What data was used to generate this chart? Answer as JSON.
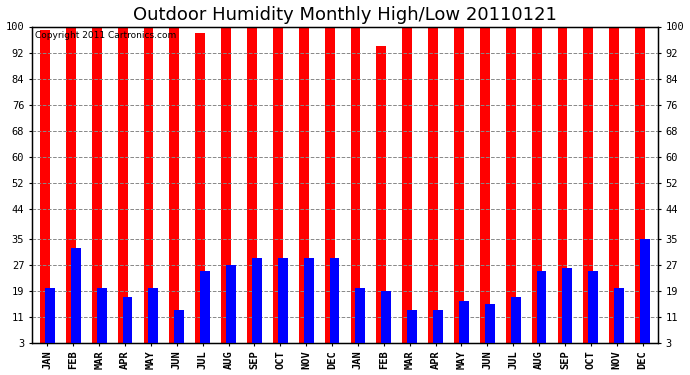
{
  "title": "Outdoor Humidity Monthly High/Low 20110121",
  "copyright": "Copyright 2011 Cartronics.com",
  "months": [
    "JAN",
    "FEB",
    "MAR",
    "APR",
    "MAY",
    "JUN",
    "JUL",
    "AUG",
    "SEP",
    "OCT",
    "NOV",
    "DEC",
    "JAN",
    "FEB",
    "MAR",
    "APR",
    "MAY",
    "JUN",
    "JUL",
    "AUG",
    "SEP",
    "OCT",
    "NOV",
    "DEC"
  ],
  "high_values": [
    99,
    100,
    100,
    100,
    100,
    100,
    98,
    100,
    100,
    100,
    100,
    100,
    100,
    94,
    100,
    100,
    100,
    100,
    100,
    100,
    100,
    100,
    100,
    100
  ],
  "low_values": [
    20,
    32,
    20,
    17,
    20,
    13,
    25,
    27,
    29,
    29,
    29,
    29,
    20,
    19,
    13,
    13,
    16,
    15,
    17,
    25,
    26,
    25,
    20,
    35
  ],
  "bar_color_high": "#ff0000",
  "bar_color_low": "#0000ff",
  "bg_color": "#ffffff",
  "plot_bg_color": "#ffffff",
  "grid_color": "#888888",
  "yticks": [
    3,
    11,
    19,
    27,
    35,
    44,
    52,
    60,
    68,
    76,
    84,
    92,
    100
  ],
  "ymin": 3,
  "ymax": 100,
  "title_fontsize": 13,
  "tick_fontsize": 7.5
}
